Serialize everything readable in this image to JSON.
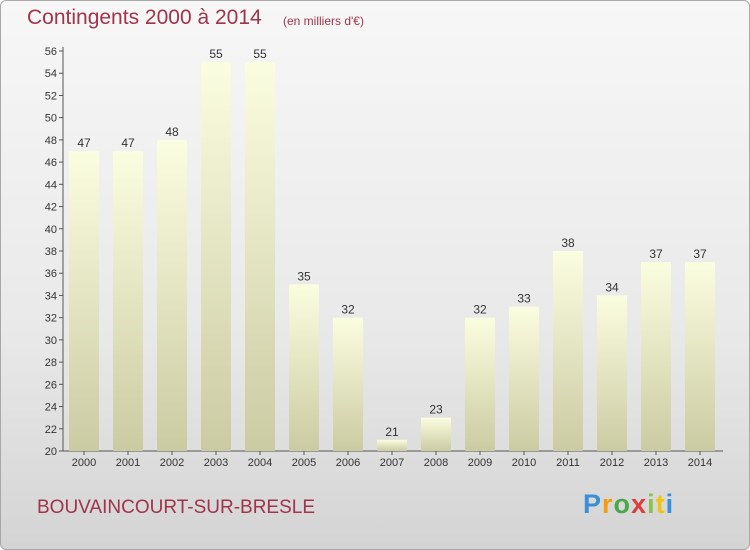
{
  "header": {
    "title": "Contingents 2000 à 2014",
    "subtitle": "(en milliers d'€)"
  },
  "footer": {
    "place": "BOUVAINCOURT-SUR-BRESLE",
    "logo_letters": [
      "P",
      "r",
      "o",
      "x",
      "i",
      "t",
      "i"
    ]
  },
  "colors": {
    "title": "#a0344c",
    "bar_top": "#fbfde0",
    "bar_bottom": "#cbcba3"
  },
  "chart_data": {
    "type": "bar",
    "title": "Contingents 2000 à 2014",
    "subtitle": "(en milliers d'€)",
    "categories": [
      "2000",
      "2001",
      "2002",
      "2003",
      "2004",
      "2005",
      "2006",
      "2007",
      "2008",
      "2009",
      "2010",
      "2011",
      "2012",
      "2013",
      "2014"
    ],
    "values": [
      47,
      47,
      48,
      55,
      55,
      35,
      32,
      21,
      23,
      32,
      33,
      38,
      34,
      37,
      37
    ],
    "ylim": [
      20,
      56
    ],
    "yticks": [
      20,
      22,
      24,
      26,
      28,
      30,
      32,
      34,
      36,
      38,
      40,
      42,
      44,
      46,
      48,
      50,
      52,
      54,
      56
    ],
    "grid": false,
    "data_labels": true
  }
}
